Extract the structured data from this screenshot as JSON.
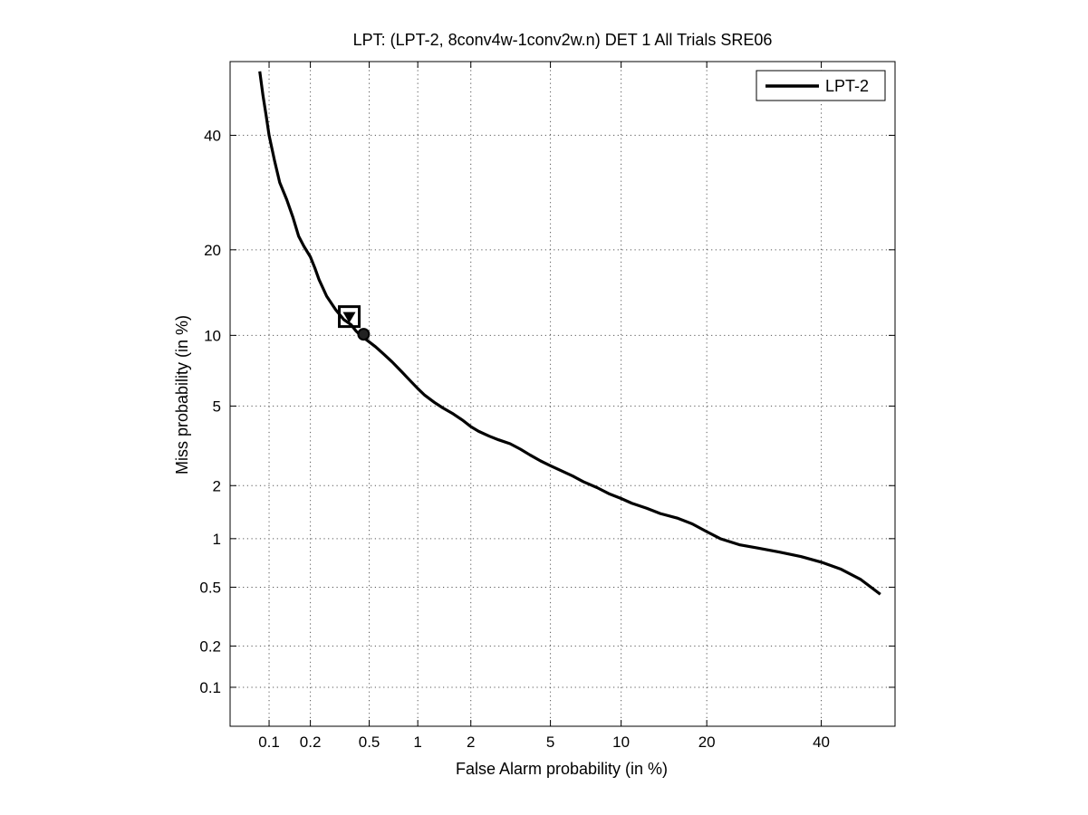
{
  "chart_data": {
    "type": "line",
    "title": "LPT: (LPT-2, 8conv4w-1conv2w.n) DET 1 All Trials SRE06",
    "xlabel": "False Alarm probability (in %)",
    "ylabel": "Miss probability (in %)",
    "x_scale": "normal-deviate (probit)",
    "y_scale": "normal-deviate (probit)",
    "xlim": [
      0.05,
      55
    ],
    "ylim": [
      0.05,
      55
    ],
    "x_ticks": [
      0.1,
      0.2,
      0.5,
      1,
      2,
      5,
      10,
      20,
      40
    ],
    "x_tick_labels": [
      "0.1",
      "0.2",
      "0.5",
      "1",
      "2",
      "5",
      "10",
      "20",
      "40"
    ],
    "y_ticks": [
      0.1,
      0.2,
      0.5,
      1,
      2,
      5,
      10,
      20,
      40
    ],
    "y_tick_labels": [
      "0.1",
      "0.2",
      "0.5",
      "1",
      "2",
      "5",
      "10",
      "20",
      "40"
    ],
    "grid": true,
    "legend": {
      "position": "top-right",
      "entries": [
        "LPT-2"
      ]
    },
    "series": [
      {
        "name": "LPT-2",
        "color": "#000000",
        "x": [
          0.085,
          0.09,
          0.095,
          0.1,
          0.11,
          0.12,
          0.135,
          0.15,
          0.165,
          0.18,
          0.2,
          0.215,
          0.23,
          0.26,
          0.3,
          0.34,
          0.38,
          0.41,
          0.44,
          0.47,
          0.55,
          0.62,
          0.7,
          0.8,
          0.9,
          1.0,
          1.1,
          1.25,
          1.4,
          1.6,
          1.8,
          2.0,
          2.2,
          2.5,
          2.8,
          3.2,
          3.6,
          4.0,
          4.5,
          5.0,
          5.6,
          6.3,
          7.0,
          8.0,
          9.0,
          10.0,
          11.0,
          12.5,
          14,
          16,
          18,
          20,
          22,
          25,
          28,
          32,
          36,
          40,
          44,
          48,
          52
        ],
        "y": [
          53,
          48,
          44,
          40,
          35,
          31,
          28,
          25,
          22,
          20.5,
          19,
          17.5,
          16,
          14,
          12.5,
          11.5,
          11,
          10.4,
          10.0,
          9.7,
          9.0,
          8.4,
          7.8,
          7.1,
          6.5,
          6.0,
          5.6,
          5.2,
          4.9,
          4.6,
          4.3,
          4.0,
          3.8,
          3.6,
          3.45,
          3.3,
          3.1,
          2.9,
          2.7,
          2.55,
          2.4,
          2.25,
          2.1,
          1.95,
          1.8,
          1.7,
          1.6,
          1.5,
          1.4,
          1.32,
          1.22,
          1.1,
          1.0,
          0.92,
          0.88,
          0.83,
          0.78,
          0.72,
          0.65,
          0.56,
          0.45
        ]
      }
    ],
    "markers": [
      {
        "name": "actual-decision-point",
        "shape": "triangle-down",
        "x": 0.37,
        "y": 11.8
      },
      {
        "name": "min-dcf-point",
        "shape": "square",
        "x": 0.37,
        "y": 11.8
      },
      {
        "name": "eer-circle-point",
        "shape": "circle",
        "x": 0.46,
        "y": 10.1
      }
    ]
  }
}
